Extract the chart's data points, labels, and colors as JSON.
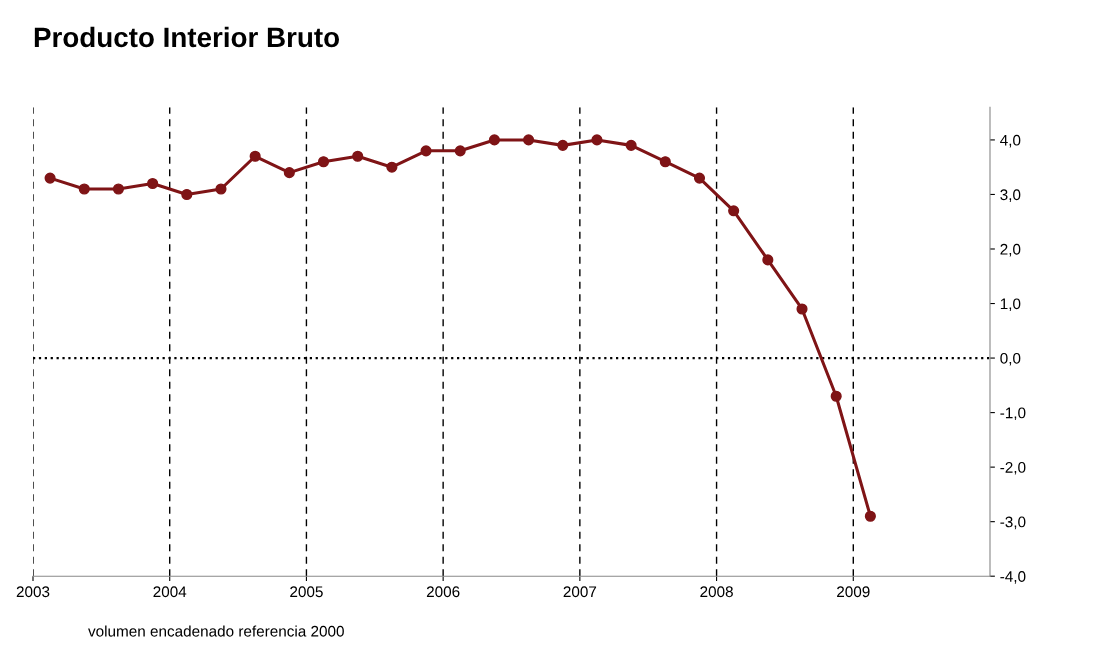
{
  "chart_data": {
    "type": "line",
    "title": "Producto Interior Bruto",
    "annotations": [
      "volumen encadenado referencia 2000"
    ],
    "x": [
      2003.125,
      2003.375,
      2003.625,
      2003.875,
      2004.125,
      2004.375,
      2004.625,
      2004.875,
      2005.125,
      2005.375,
      2005.625,
      2005.875,
      2006.125,
      2006.375,
      2006.625,
      2006.875,
      2007.125,
      2007.375,
      2007.625,
      2007.875,
      2008.125,
      2008.375,
      2008.625,
      2008.875,
      2009.125
    ],
    "series": [
      {
        "color": "#7f1416",
        "values": [
          3.3,
          3.1,
          3.1,
          3.2,
          3.0,
          3.1,
          3.7,
          3.4,
          3.6,
          3.7,
          3.5,
          3.8,
          3.8,
          4.0,
          4.0,
          3.9,
          4.0,
          3.9,
          3.6,
          3.3,
          2.7,
          1.8,
          0.9,
          -0.7,
          -2.9
        ]
      }
    ],
    "xlim": [
      2003,
      2010
    ],
    "xticks": [
      2003,
      2004,
      2005,
      2006,
      2007,
      2008,
      2009
    ],
    "ylim": [
      -4,
      4.6
    ],
    "yticks": [
      {
        "value": -4,
        "label": "-4,0"
      },
      {
        "value": -3,
        "label": "-3,0"
      },
      {
        "value": -2,
        "label": "-2,0"
      },
      {
        "value": -1,
        "label": "-1,0"
      },
      {
        "value": 0,
        "label": "0,0"
      },
      {
        "value": 1,
        "label": "1,0"
      },
      {
        "value": 2,
        "label": "2,0"
      },
      {
        "value": 3,
        "label": "3,0"
      },
      {
        "value": 4,
        "label": "4,0"
      }
    ],
    "grid": "x",
    "marker": "circle",
    "line_style": "solid",
    "ref_lines": [
      {
        "axis": "y",
        "value": 0,
        "color": "#000000",
        "line_style": "dotted"
      }
    ]
  }
}
